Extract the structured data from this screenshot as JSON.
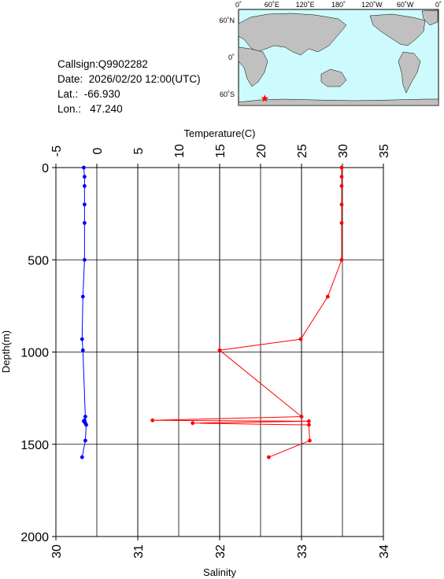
{
  "header": {
    "callsign_label": "Callsign:",
    "callsign": "Q9902282",
    "date_label": "Date:",
    "date": "2026/02/20 12:00(UTC)",
    "lat_label": "Lat.:",
    "lat": "-66.930",
    "lon_label": "Lon.:",
    "lon": "47.240"
  },
  "map": {
    "top_ticks": [
      "0˚",
      "60˚E",
      "120˚E",
      "180˚",
      "120˚W",
      "60˚W",
      "0˚"
    ],
    "side_ticks": [
      "60˚N",
      "0˚",
      "60˚S"
    ],
    "marker_color": "#ff0000",
    "ocean_color": "#cdfbfd",
    "land_color": "#c0c0c0"
  },
  "chart_data": {
    "type": "line",
    "ylabel": "Depth(m)",
    "top_xlabel": "Temperature(C)",
    "bottom_xlabel": "Salinity",
    "depth_range": [
      0,
      2000
    ],
    "depth_ticks": [
      "0",
      "500",
      "1000",
      "1500",
      "2000"
    ],
    "temperature_range": [
      -5,
      35
    ],
    "temperature_ticks": [
      "-5",
      "0",
      "5",
      "10",
      "15",
      "20",
      "25",
      "30",
      "35"
    ],
    "salinity_range": [
      30,
      34
    ],
    "salinity_ticks": [
      "30",
      "31",
      "32",
      "33",
      "34"
    ],
    "grid": true,
    "series": [
      {
        "axis": "temperature",
        "color": "#ff0000",
        "points": [
          [
            0,
            29.9
          ],
          [
            50,
            29.9
          ],
          [
            100,
            29.9
          ],
          [
            200,
            29.9
          ],
          [
            300,
            29.9
          ],
          [
            500,
            29.9
          ],
          [
            700,
            28.2
          ],
          [
            930,
            24.9
          ],
          [
            990,
            15.0
          ],
          [
            1350,
            25.0
          ],
          [
            1370,
            6.8
          ],
          [
            1375,
            25.9
          ],
          [
            1385,
            11.7
          ],
          [
            1395,
            25.9
          ],
          [
            1480,
            26.0
          ],
          [
            1570,
            21.0
          ]
        ]
      },
      {
        "axis": "salinity",
        "color": "#0000ff",
        "points": [
          [
            0,
            30.34
          ],
          [
            50,
            30.35
          ],
          [
            100,
            30.35
          ],
          [
            200,
            30.35
          ],
          [
            300,
            30.35
          ],
          [
            500,
            30.35
          ],
          [
            700,
            30.33
          ],
          [
            930,
            30.32
          ],
          [
            990,
            30.33
          ],
          [
            1350,
            30.36
          ],
          [
            1370,
            30.35
          ],
          [
            1375,
            30.34
          ],
          [
            1385,
            30.36
          ],
          [
            1395,
            30.37
          ],
          [
            1480,
            30.36
          ],
          [
            1570,
            30.32
          ]
        ]
      }
    ]
  }
}
